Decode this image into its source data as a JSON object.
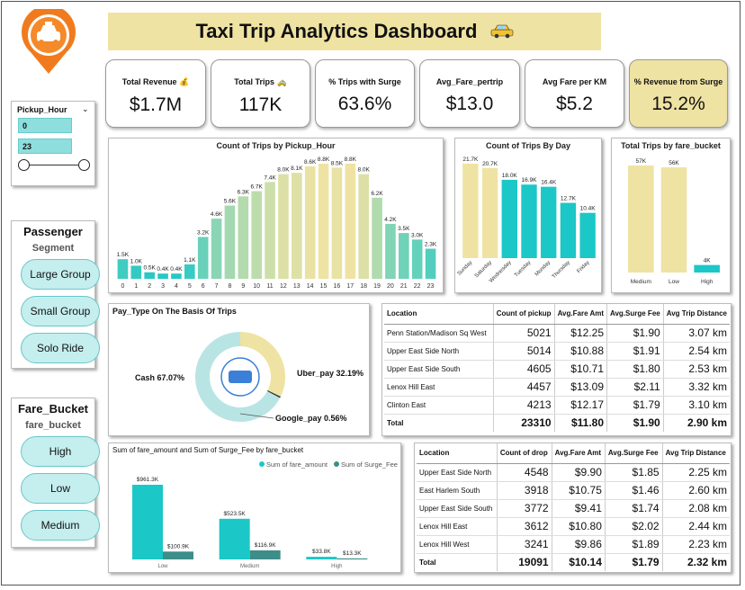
{
  "title": "Taxi Trip Analytics Dashboard",
  "title_icon": "taxi-icon",
  "logo_icon": "taxi-location-pin-icon",
  "colors": {
    "teal": "#1cc7c7",
    "sand": "#efe3a3",
    "orange": "#f07b1e",
    "dark_teal": "#3d8d88"
  },
  "kpis": [
    {
      "label": "Total Revenue 💰",
      "value": "$1.7M"
    },
    {
      "label": "Total Trips 🚕",
      "value": "117K"
    },
    {
      "label": "% Trips with Surge",
      "value": "63.6%"
    },
    {
      "label": "Avg_Fare_pertrip",
      "value": "$13.0"
    },
    {
      "label": "Avg Fare per KM",
      "value": "$5.2"
    },
    {
      "label": "% Revenue from Surge",
      "value": "15.2%"
    }
  ],
  "hour_slicer": {
    "title": "Pickup_Hour",
    "from": "0",
    "to": "23",
    "range_fraction": [
      0,
      1
    ]
  },
  "passenger": {
    "title": "Passenger",
    "subtitle": "Segment",
    "options": [
      "Large Group",
      "Small Group",
      "Solo Ride"
    ]
  },
  "fare_bucket": {
    "title": "Fare_Bucket",
    "subtitle": "fare_bucket",
    "options": [
      "High",
      "Low",
      "Medium"
    ]
  },
  "chart_data": [
    {
      "type": "bar",
      "title": "Count of Trips by Pickup_Hour",
      "categories": [
        "0",
        "1",
        "2",
        "3",
        "4",
        "5",
        "6",
        "7",
        "8",
        "9",
        "10",
        "11",
        "12",
        "13",
        "14",
        "15",
        "16",
        "17",
        "18",
        "19",
        "20",
        "21",
        "22",
        "23"
      ],
      "values": [
        1.5,
        1.0,
        0.5,
        0.4,
        0.4,
        1.1,
        3.2,
        4.6,
        5.6,
        6.3,
        6.7,
        7.4,
        8.0,
        8.1,
        8.6,
        8.8,
        8.5,
        8.8,
        8.0,
        6.2,
        4.2,
        3.5,
        3.0,
        2.3
      ],
      "labels": [
        "1.5K",
        "1.0K",
        "0.5K",
        "0.4K",
        "0.4K",
        "1.1K",
        "3.2K",
        "4.6K",
        "5.6K",
        "6.3K",
        "6.7K",
        "7.4K",
        "8.0K",
        "8.1K",
        "8.6K",
        "8.8K",
        "8.5K",
        "8.8K",
        "8.0K",
        "6.2K",
        "4.2K",
        "3.5K",
        "3.0K",
        "2.3K"
      ],
      "ylim": [
        0,
        8.8
      ]
    },
    {
      "type": "bar",
      "title": "Count of Trips By Day",
      "categories": [
        "Sunday",
        "Saturday",
        "Wednesday",
        "Tuesday",
        "Monday",
        "Thursday",
        "Friday"
      ],
      "values": [
        21.7,
        20.7,
        18.0,
        16.9,
        16.4,
        12.7,
        10.4
      ],
      "labels": [
        "21.7K",
        "20.7K",
        "18.0K",
        "16.9K",
        "16.4K",
        "12.7K",
        "10.4K"
      ],
      "ylim": [
        0,
        21.7
      ]
    },
    {
      "type": "bar",
      "title": "Total Trips by fare_bucket",
      "categories": [
        "Medium",
        "Low",
        "High"
      ],
      "values": [
        57,
        56,
        4
      ],
      "labels": [
        "57K",
        "56K",
        "4K"
      ],
      "ylim": [
        0,
        57
      ]
    },
    {
      "type": "pie",
      "title": "Pay_Type On The Basis Of Trips",
      "slices": [
        {
          "name": "Cash",
          "value": 67.07,
          "label": "Cash 67.07%"
        },
        {
          "name": "Uber_pay",
          "value": 32.19,
          "label": "Uber_pay 32.19%"
        },
        {
          "name": "Google_pay",
          "value": 0.56,
          "label": "Google_pay 0.56%"
        }
      ]
    },
    {
      "type": "bar",
      "title": "Sum of fare_amount and Sum of Surge_Fee by fare_bucket",
      "categories": [
        "Low",
        "Medium",
        "High"
      ],
      "series": [
        {
          "name": "Sum of fare_amount",
          "values": [
            961.3,
            523.5,
            33.8
          ],
          "labels": [
            "$961.3K",
            "$523.5K",
            "$33.8K"
          ]
        },
        {
          "name": "Sum of Surge_Fee",
          "values": [
            100.9,
            116.9,
            13.3
          ],
          "labels": [
            "$100.9K",
            "$116.9K",
            "$13.3K"
          ]
        }
      ],
      "ylim": [
        0,
        961.3
      ]
    }
  ],
  "pickup_table": {
    "headers": [
      "Location",
      "Count of pickup",
      "Avg.Fare Amt",
      "Avg.Surge Fee",
      "Avg Trip Distance"
    ],
    "rows": [
      [
        "Penn Station/Madison Sq West",
        "5021",
        "$12.25",
        "$1.90",
        "3.07 km"
      ],
      [
        "Upper East Side North",
        "5014",
        "$10.88",
        "$1.91",
        "2.54 km"
      ],
      [
        "Upper East Side South",
        "4605",
        "$10.71",
        "$1.80",
        "2.53 km"
      ],
      [
        "Lenox Hill East",
        "4457",
        "$13.09",
        "$2.11",
        "3.32 km"
      ],
      [
        "Clinton East",
        "4213",
        "$12.17",
        "$1.79",
        "3.10 km"
      ]
    ],
    "total": [
      "Total",
      "23310",
      "$11.80",
      "$1.90",
      "2.90 km"
    ]
  },
  "drop_table": {
    "headers": [
      "Location",
      "Count of drop",
      "Avg.Fare Amt",
      "Avg.Surge Fee",
      "Avg Trip Distance"
    ],
    "rows": [
      [
        "Upper East Side North",
        "4548",
        "$9.90",
        "$1.85",
        "2.25 km"
      ],
      [
        "East Harlem South",
        "3918",
        "$10.75",
        "$1.46",
        "2.60 km"
      ],
      [
        "Upper East Side South",
        "3772",
        "$9.41",
        "$1.74",
        "2.08 km"
      ],
      [
        "Lenox Hill East",
        "3612",
        "$10.80",
        "$2.02",
        "2.44 km"
      ],
      [
        "Lenox Hill West",
        "3241",
        "$9.86",
        "$1.89",
        "2.23 km"
      ]
    ],
    "total": [
      "Total",
      "19091",
      "$10.14",
      "$1.79",
      "2.32 km"
    ]
  }
}
